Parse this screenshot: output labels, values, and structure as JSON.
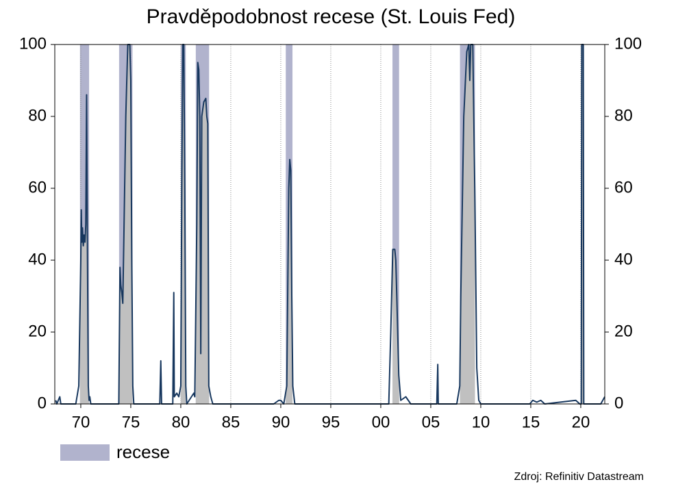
{
  "chart_data": {
    "type": "line",
    "title": "Pravděpodobnost recese (St. Louis Fed)",
    "series": [
      {
        "color": "#17375e",
        "area_color": "#c0c0c0",
        "x": [
          1967.5,
          1967.6,
          1967.9,
          1968.0,
          1969.5,
          1969.8,
          1970.0,
          1970.05,
          1970.1,
          1970.17,
          1970.25,
          1970.33,
          1970.42,
          1970.5,
          1970.58,
          1970.67,
          1970.75,
          1970.83,
          1970.9,
          1971.0,
          1973.8,
          1973.92,
          1974.0,
          1974.1,
          1974.2,
          1974.3,
          1974.5,
          1974.6,
          1974.7,
          1974.9,
          1975.0,
          1975.1,
          1975.2,
          1975.3,
          1977.9,
          1978.0,
          1978.08,
          1979.2,
          1979.3,
          1979.35,
          1979.6,
          1979.8,
          1980.0,
          1980.1,
          1980.2,
          1980.3,
          1980.4,
          1980.5,
          1980.6,
          1981.3,
          1981.4,
          1981.6,
          1981.7,
          1981.8,
          1981.9,
          1982.0,
          1982.1,
          1982.3,
          1982.5,
          1982.6,
          1982.7,
          1982.8,
          1983.0,
          1983.2,
          1989.3,
          1989.8,
          1990.0,
          1990.3,
          1990.6,
          1990.8,
          1990.9,
          1991.0,
          1991.1,
          1991.2,
          1991.4,
          2000.8,
          2001.0,
          2001.2,
          2001.4,
          2001.5,
          2001.6,
          2001.8,
          2002.0,
          2002.5,
          2003.0,
          2005.6,
          2005.7,
          2005.75,
          2007.6,
          2007.9,
          2008.0,
          2008.3,
          2008.6,
          2008.8,
          2008.9,
          2009.0,
          2009.2,
          2009.4,
          2009.6,
          2009.8,
          2010.0,
          2014.9,
          2015.2,
          2015.6,
          2016.0,
          2016.4,
          2019.5,
          2019.9,
          2020.05,
          2020.1,
          2020.25,
          2020.3,
          2022.0,
          2022.4
        ],
        "values": [
          1,
          0,
          2,
          0,
          0,
          5,
          40,
          54,
          45,
          49,
          44,
          47,
          45,
          50,
          86,
          40,
          5,
          1,
          2,
          0,
          0,
          38,
          33,
          31,
          28,
          45,
          80,
          90,
          100,
          100,
          90,
          40,
          5,
          0,
          0,
          12,
          0,
          0,
          31,
          2,
          3,
          2,
          5,
          60,
          100,
          100,
          60,
          5,
          0,
          3,
          2,
          50,
          95,
          93,
          80,
          14,
          80,
          84,
          85,
          80,
          78,
          5,
          2,
          0,
          0,
          1,
          1,
          0,
          5,
          60,
          68,
          65,
          30,
          5,
          0,
          0,
          20,
          43,
          43,
          40,
          30,
          8,
          1,
          2,
          0,
          0,
          11,
          0,
          0,
          5,
          30,
          80,
          98,
          100,
          90,
          100,
          100,
          60,
          10,
          1,
          0,
          0,
          1,
          0.5,
          1,
          0,
          1,
          0,
          0,
          100,
          100,
          0,
          0,
          2
        ]
      }
    ],
    "recessions": {
      "name": "recese",
      "color": "#b1b3cd",
      "periods": [
        [
          1969.92,
          1970.83
        ],
        [
          1973.83,
          1975.17
        ],
        [
          1980.0,
          1980.5
        ],
        [
          1981.5,
          1982.83
        ],
        [
          1990.5,
          1991.17
        ],
        [
          2001.17,
          2001.83
        ],
        [
          2007.92,
          2009.42
        ],
        [
          2020.08,
          2020.25
        ]
      ]
    },
    "xlim": [
      1967.4,
      2022.4
    ],
    "xticks": [
      {
        "value": 1970,
        "label": "70"
      },
      {
        "value": 1975,
        "label": "75"
      },
      {
        "value": 1980,
        "label": "80"
      },
      {
        "value": 1985,
        "label": "85"
      },
      {
        "value": 1990,
        "label": "90"
      },
      {
        "value": 1995,
        "label": "95"
      },
      {
        "value": 2000,
        "label": "00"
      },
      {
        "value": 2005,
        "label": "05"
      },
      {
        "value": 2010,
        "label": "10"
      },
      {
        "value": 2015,
        "label": "15"
      },
      {
        "value": 2020,
        "label": "20"
      }
    ],
    "ylim": [
      0,
      100
    ],
    "yticks": [
      0,
      20,
      40,
      60,
      80,
      100
    ],
    "y2lim": [
      0,
      100
    ],
    "y2ticks": [
      0,
      20,
      40,
      60,
      80,
      100
    ],
    "grid": true,
    "source": "Zdroj: Refinitiv Datastream"
  }
}
